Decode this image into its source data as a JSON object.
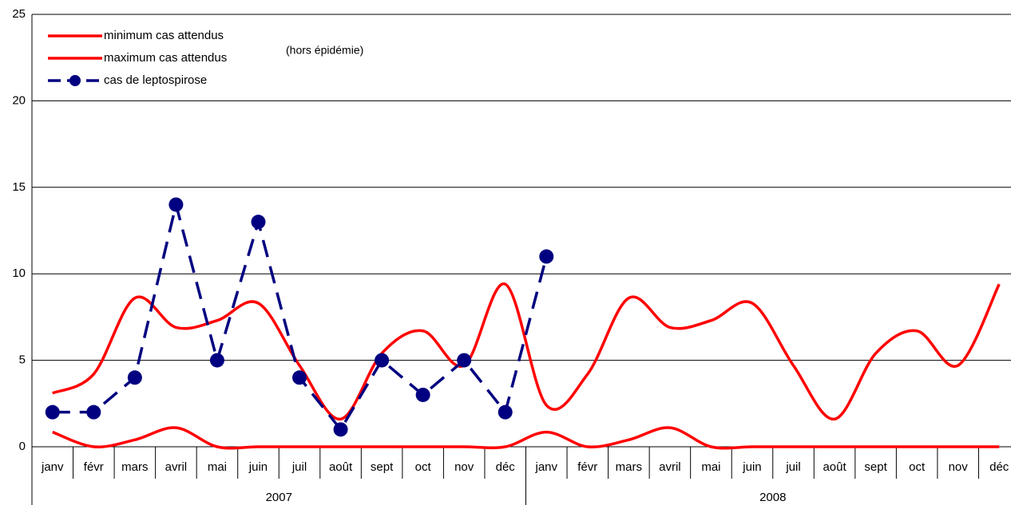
{
  "chart_data": {
    "type": "line",
    "categories": [
      "janv",
      "févr",
      "mars",
      "avril",
      "mai",
      "juin",
      "juil",
      "août",
      "sept",
      "oct",
      "nov",
      "déc",
      "janv",
      "févr",
      "mars",
      "avril",
      "mai",
      "juin",
      "juil",
      "août",
      "sept",
      "oct",
      "nov",
      "déc"
    ],
    "years": [
      "2007",
      "2008"
    ],
    "annotation": "(hors épidémie)",
    "ylim": [
      0,
      25
    ],
    "yticks": [
      0,
      5,
      10,
      15,
      20,
      25
    ],
    "grid": true,
    "series": [
      {
        "name": "minimum cas attendus",
        "color": "#ff0000",
        "smooth": true,
        "dashed": false,
        "marker": false,
        "values": [
          0.85,
          0,
          0.4,
          1.1,
          0,
          0,
          0,
          0,
          0,
          0,
          0,
          0,
          0.85,
          0,
          0.4,
          1.1,
          0,
          0,
          0,
          0,
          0,
          0,
          0,
          0
        ]
      },
      {
        "name": "maximum cas attendus",
        "color": "#ff0000",
        "smooth": true,
        "dashed": false,
        "marker": false,
        "values": [
          3.1,
          4.2,
          8.6,
          6.9,
          7.3,
          8.3,
          4.7,
          1.6,
          5.4,
          6.7,
          4.7,
          9.4,
          2.4,
          4.2,
          8.6,
          6.9,
          7.3,
          8.3,
          4.7,
          1.6,
          5.4,
          6.7,
          4.7,
          9.4
        ]
      },
      {
        "name": "cas de leptospirose",
        "color": "#000080",
        "smooth": false,
        "dashed": true,
        "marker": true,
        "values": [
          2,
          2,
          4,
          14,
          5,
          13,
          4,
          1,
          5,
          3,
          5,
          2,
          11,
          null,
          null,
          null,
          null,
          null,
          null,
          null,
          null,
          null,
          null,
          null
        ]
      }
    ]
  }
}
